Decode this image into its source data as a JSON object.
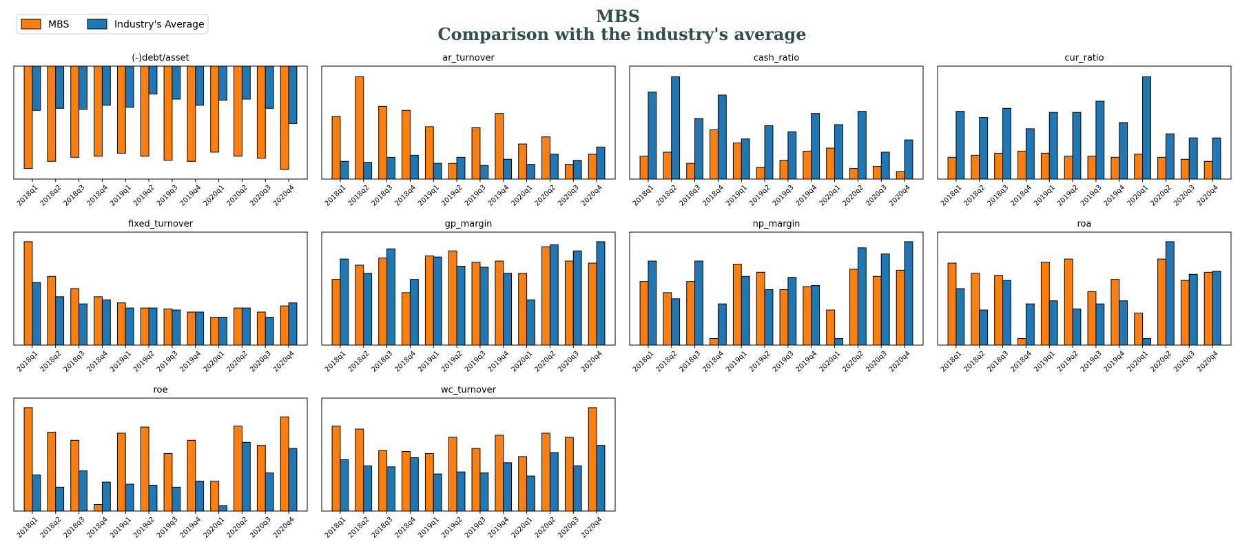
{
  "figure": {
    "title": "MBS",
    "subtitle": "Comparison with the industry's average",
    "title_color": "#2f4f4f"
  },
  "legend": {
    "placement": "top-left",
    "items": [
      {
        "label": "MBS",
        "color": "#ff7f0e"
      },
      {
        "label": "Industry's Average",
        "color": "#1f77b4"
      }
    ]
  },
  "chart_data": [
    {
      "type": "bar",
      "title": "(-)debt/asset",
      "categories": [
        "2018q1",
        "2018q2",
        "2018q3",
        "2018q4",
        "2019q1",
        "2019q2",
        "2019q3",
        "2019q4",
        "2020q1",
        "2020q2",
        "2020q3",
        "2020q4"
      ],
      "ylim": [
        -1.0,
        0.0
      ],
      "series": [
        {
          "name": "MBS",
          "values": [
            -0.95,
            -0.88,
            -0.84,
            -0.83,
            -0.8,
            -0.83,
            -0.87,
            -0.88,
            -0.79,
            -0.83,
            -0.85,
            -0.96
          ]
        },
        {
          "name": "Industry's Average",
          "values": [
            -0.38,
            -0.36,
            -0.37,
            -0.33,
            -0.35,
            -0.22,
            -0.27,
            -0.33,
            -0.28,
            -0.27,
            -0.36,
            -0.51
          ]
        }
      ]
    },
    {
      "type": "bar",
      "title": "ar_turnover",
      "categories": [
        "2018q1",
        "2018q2",
        "2018q3",
        "2018q4",
        "2019q1",
        "2019q2",
        "2019q3",
        "2019q4",
        "2020q1",
        "2020q2",
        "2020q3",
        "2020q4"
      ],
      "ylim": [
        0,
        100
      ],
      "series": [
        {
          "name": "MBS",
          "values": [
            56,
            95,
            66,
            62,
            46,
            10,
            45,
            59,
            29,
            36,
            9,
            19
          ]
        },
        {
          "name": "Industry's Average",
          "values": [
            12,
            11,
            16,
            18,
            10,
            16,
            8,
            14,
            9,
            19,
            13,
            26
          ]
        }
      ]
    },
    {
      "type": "bar",
      "title": "cash_ratio",
      "categories": [
        "2018q1",
        "2018q2",
        "2018q3",
        "2018q4",
        "2019q1",
        "2019q2",
        "2019q3",
        "2019q4",
        "2020q1",
        "2020q2",
        "2020q3",
        "2020q4"
      ],
      "ylim": [
        0,
        1.0
      ],
      "series": [
        {
          "name": "MBS",
          "values": [
            0.17,
            0.21,
            0.1,
            0.43,
            0.3,
            0.06,
            0.13,
            0.22,
            0.25,
            0.05,
            0.07,
            0.02
          ]
        },
        {
          "name": "Industry's Average",
          "values": [
            0.8,
            0.95,
            0.54,
            0.77,
            0.34,
            0.47,
            0.41,
            0.59,
            0.48,
            0.61,
            0.21,
            0.33
          ]
        }
      ]
    },
    {
      "type": "bar",
      "title": "cur_ratio",
      "categories": [
        "2018q1",
        "2018q2",
        "2018q3",
        "2018q4",
        "2019q1",
        "2019q2",
        "2019q3",
        "2019q4",
        "2020q1",
        "2020q2",
        "2020q3",
        "2020q4"
      ],
      "ylim": [
        0,
        1.0
      ],
      "series": [
        {
          "name": "MBS",
          "values": [
            0.16,
            0.18,
            0.2,
            0.22,
            0.2,
            0.17,
            0.17,
            0.16,
            0.19,
            0.16,
            0.14,
            0.12
          ]
        },
        {
          "name": "Industry's Average",
          "values": [
            0.61,
            0.55,
            0.64,
            0.44,
            0.6,
            0.6,
            0.71,
            0.5,
            0.95,
            0.39,
            0.35,
            0.35
          ]
        }
      ]
    },
    {
      "type": "bar",
      "title": "fixed_turnover",
      "categories": [
        "2018q1",
        "2018q2",
        "2018q3",
        "2018q4",
        "2019q1",
        "2019q2",
        "2019q3",
        "2019q4",
        "2020q1",
        "2020q2",
        "2020q3",
        "2020q4"
      ],
      "ylim": [
        0,
        100
      ],
      "series": [
        {
          "name": "MBS",
          "values": [
            96,
            62,
            50,
            42,
            36,
            31,
            30,
            27,
            22,
            31,
            27,
            33
          ]
        },
        {
          "name": "Industry's Average",
          "values": [
            56,
            42,
            35,
            39,
            31,
            31,
            29,
            27,
            22,
            31,
            22,
            36
          ]
        }
      ]
    },
    {
      "type": "bar",
      "title": "gp_margin",
      "categories": [
        "2018q1",
        "2018q2",
        "2018q3",
        "2018q4",
        "2019q1",
        "2019q2",
        "2019q3",
        "2019q4",
        "2020q1",
        "2020q2",
        "2020q3",
        "2020q4"
      ],
      "ylim": [
        0,
        100
      ],
      "series": [
        {
          "name": "MBS",
          "values": [
            59,
            73,
            80,
            46,
            82,
            87,
            76,
            77,
            65,
            91,
            77,
            75
          ]
        },
        {
          "name": "Industry's Average",
          "values": [
            79,
            65,
            89,
            59,
            81,
            72,
            71,
            65,
            39,
            93,
            87,
            96
          ]
        }
      ]
    },
    {
      "type": "bar",
      "title": "np_margin",
      "categories": [
        "2018q1",
        "2018q2",
        "2018q3",
        "2018q4",
        "2019q1",
        "2019q2",
        "2019q3",
        "2019q4",
        "2020q1",
        "2020q2",
        "2020q3",
        "2020q4"
      ],
      "ylim": [
        0,
        100
      ],
      "series": [
        {
          "name": "MBS",
          "values": [
            57,
            46,
            57,
            1,
            74,
            66,
            49,
            52,
            29,
            69,
            62,
            68
          ]
        },
        {
          "name": "Industry's Average",
          "values": [
            77,
            40,
            77,
            35,
            62,
            49,
            61,
            53,
            1,
            90,
            84,
            96
          ]
        }
      ]
    },
    {
      "type": "bar",
      "title": "roa",
      "categories": [
        "2018q1",
        "2018q2",
        "2018q3",
        "2018q4",
        "2019q1",
        "2019q2",
        "2019q3",
        "2019q4",
        "2020q1",
        "2020q2",
        "2020q3",
        "2020q4"
      ],
      "ylim": [
        0,
        100
      ],
      "series": [
        {
          "name": "MBS",
          "values": [
            75,
            65,
            63,
            1,
            76,
            79,
            47,
            59,
            26,
            79,
            58,
            66
          ]
        },
        {
          "name": "Industry's Average",
          "values": [
            50,
            29,
            58,
            35,
            38,
            30,
            35,
            38,
            1,
            96,
            64,
            67
          ]
        }
      ]
    },
    {
      "type": "bar",
      "title": "roe",
      "categories": [
        "2018q1",
        "2018q2",
        "2018q3",
        "2018q4",
        "2019q1",
        "2019q2",
        "2019q3",
        "2019q4",
        "2020q1",
        "2020q2",
        "2020q3",
        "2020q4"
      ],
      "ylim": [
        0,
        100
      ],
      "series": [
        {
          "name": "MBS",
          "values": [
            96,
            72,
            64,
            1,
            71,
            77,
            51,
            64,
            24,
            78,
            59,
            87
          ]
        },
        {
          "name": "Industry's Average",
          "values": [
            30,
            18,
            34,
            23,
            21,
            20,
            18,
            24,
            0,
            62,
            32,
            56
          ]
        }
      ]
    },
    {
      "type": "bar",
      "title": "wc_turnover",
      "categories": [
        "2018q1",
        "2018q2",
        "2018q3",
        "2018q4",
        "2019q1",
        "2019q2",
        "2019q3",
        "2019q4",
        "2020q1",
        "2020q2",
        "2020q3",
        "2020q4"
      ],
      "ylim": [
        0,
        100
      ],
      "series": [
        {
          "name": "MBS",
          "values": [
            78,
            75,
            54,
            53,
            51,
            67,
            56,
            69,
            48,
            71,
            67,
            96
          ]
        },
        {
          "name": "Industry's Average",
          "values": [
            45,
            39,
            38,
            47,
            31,
            33,
            32,
            42,
            29,
            52,
            39,
            59
          ]
        }
      ]
    }
  ]
}
